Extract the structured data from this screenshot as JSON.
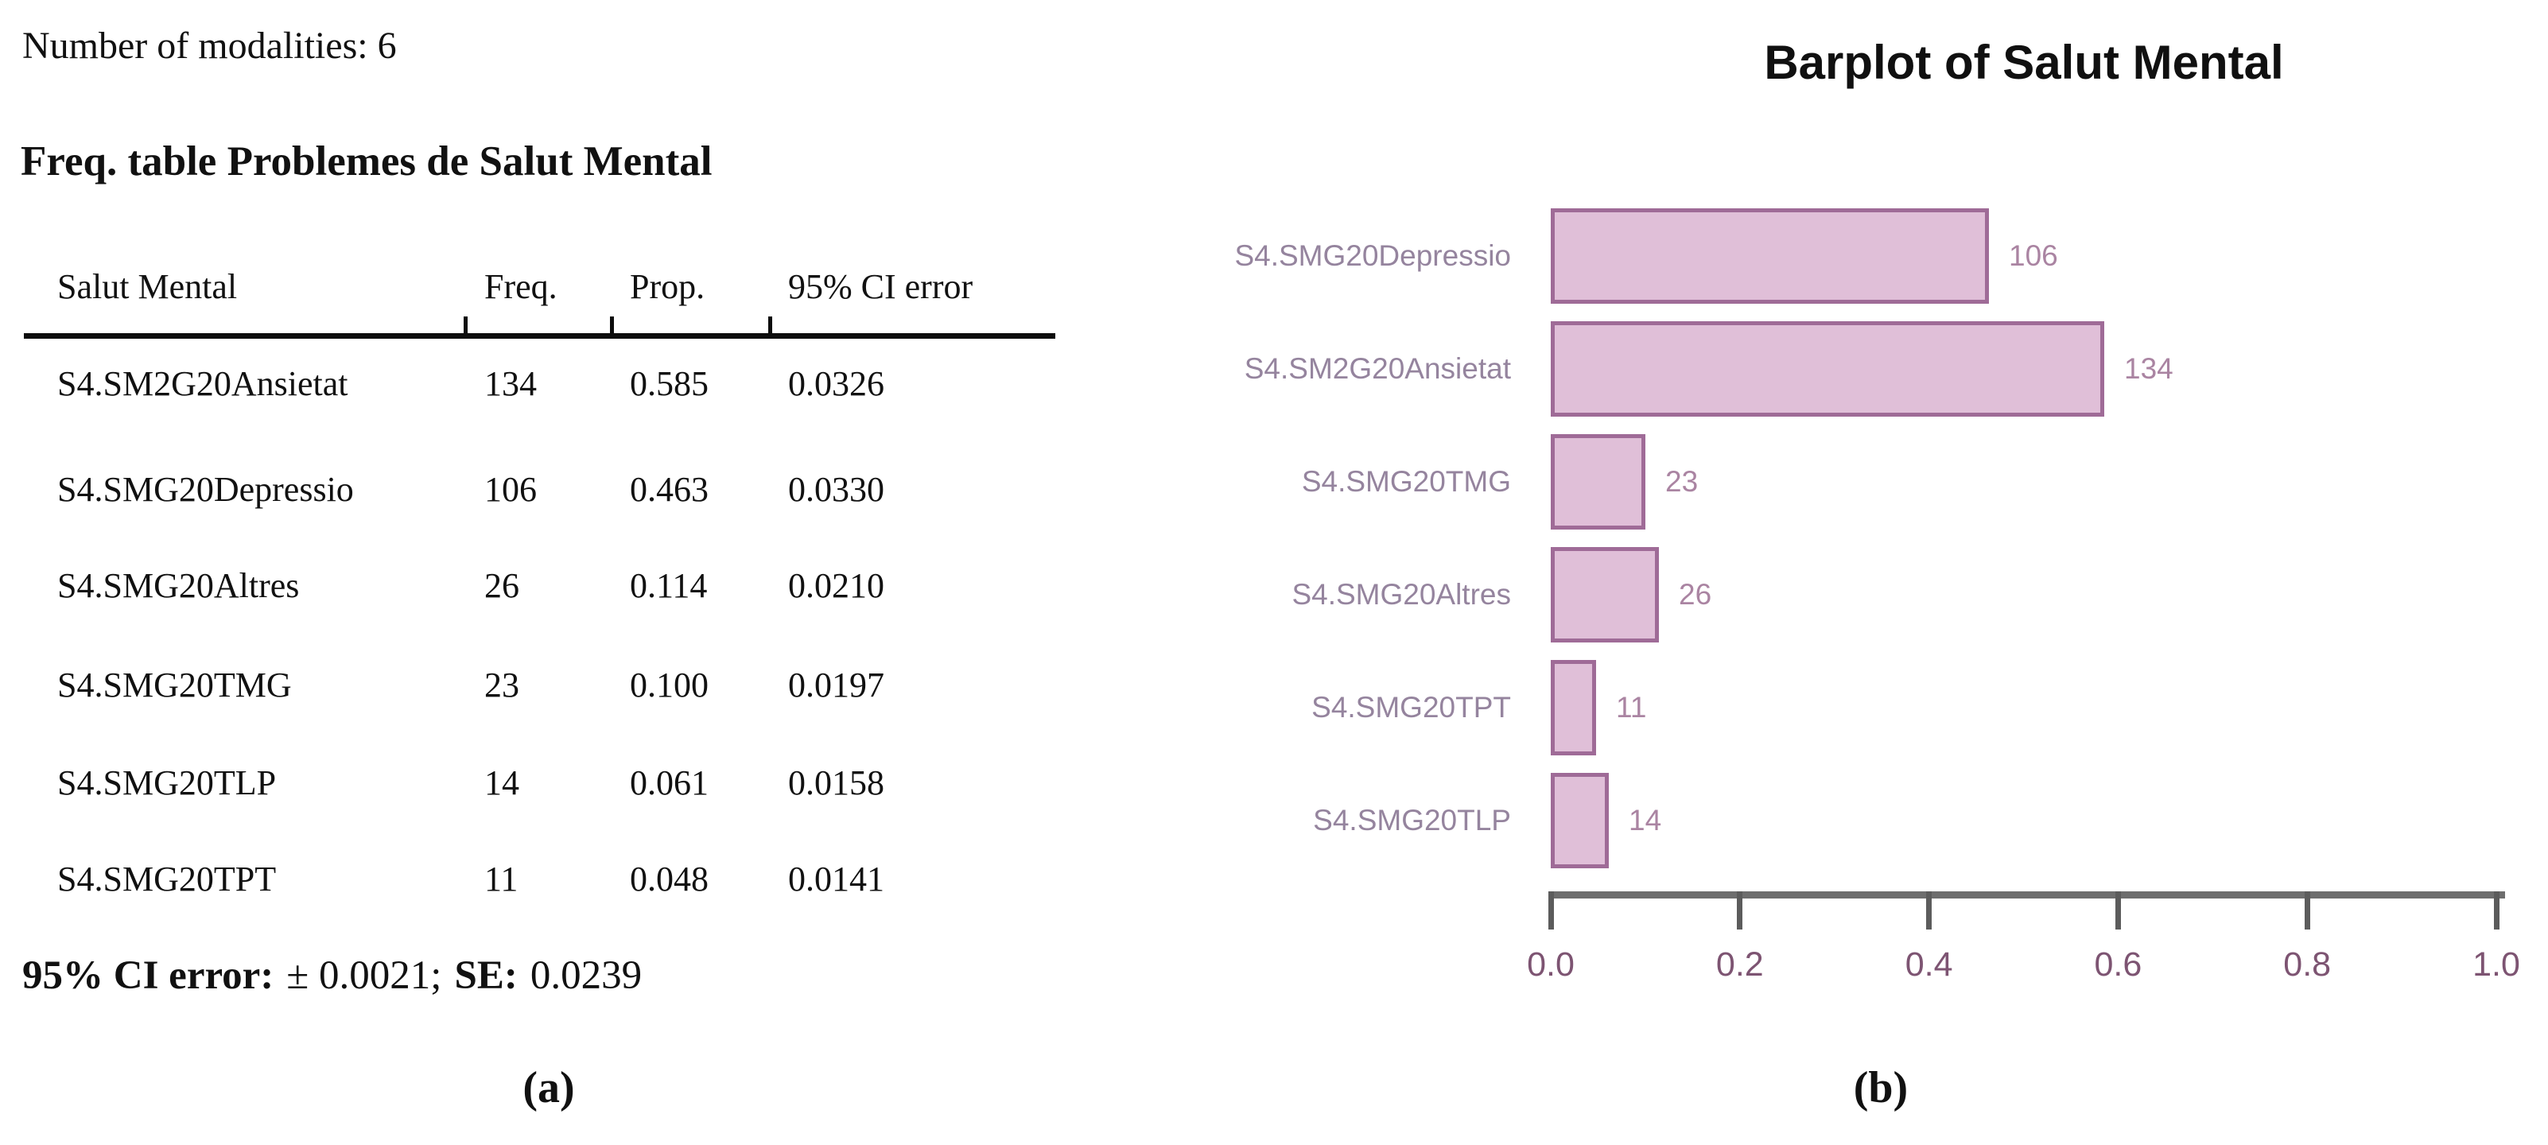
{
  "figure": {
    "caption_a": "(a)",
    "caption_b": "(b)"
  },
  "panel_a": {
    "modalities_line": "Number of modalities: 6",
    "heading": "Freq. table Problemes de Salut Mental",
    "table": {
      "headers": [
        "Salut Mental",
        "Freq.",
        "Prop.",
        "95% CI error"
      ],
      "rows": [
        {
          "name": "S4.SM2G20Ansietat",
          "freq": "134",
          "prop": "0.585",
          "ci": "0.0326"
        },
        {
          "name": "S4.SMG20Depressio",
          "freq": "106",
          "prop": "0.463",
          "ci": "0.0330"
        },
        {
          "name": "S4.SMG20Altres",
          "freq": "26",
          "prop": "0.114",
          "ci": "0.0210"
        },
        {
          "name": "S4.SMG20TMG",
          "freq": "23",
          "prop": "0.100",
          "ci": "0.0197"
        },
        {
          "name": "S4.SMG20TLP",
          "freq": "14",
          "prop": "0.061",
          "ci": "0.0158"
        },
        {
          "name": "S4.SMG20TPT",
          "freq": "11",
          "prop": "0.048",
          "ci": "0.0141"
        }
      ]
    },
    "footer": {
      "ci_label": "95% CI error:",
      "ci_value": "± 0.0021;",
      "se_label": "SE:",
      "se_value": "0.0239"
    }
  },
  "chart_data": {
    "type": "bar",
    "orientation": "horizontal",
    "title": "Barplot of Salut Mental",
    "categories": [
      "S4.SMG20Depressio",
      "S4.SM2G20Ansietat",
      "S4.SMG20TMG",
      "S4.SMG20Altres",
      "S4.SMG20TPT",
      "S4.SMG20TLP"
    ],
    "values": [
      106,
      134,
      23,
      26,
      11,
      14
    ],
    "proportions": [
      0.463,
      0.585,
      0.1,
      0.114,
      0.048,
      0.061
    ],
    "xlabel": "",
    "ylabel": "",
    "xlim": [
      0.0,
      1.0
    ],
    "x_ticks": [
      "0.0",
      "0.2",
      "0.4",
      "0.6",
      "0.8",
      "1.0"
    ],
    "grid": false,
    "legend": "none",
    "bar_fill": "#e0bfd8",
    "bar_border": "#9f6b97"
  }
}
